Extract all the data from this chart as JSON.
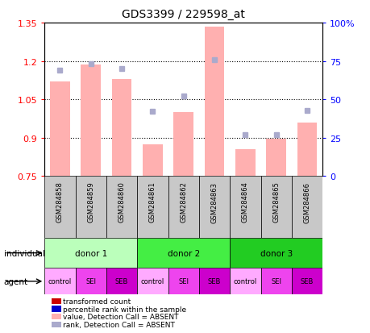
{
  "title": "GDS3399 / 229598_at",
  "samples": [
    "GSM284858",
    "GSM284859",
    "GSM284860",
    "GSM284861",
    "GSM284862",
    "GSM284863",
    "GSM284864",
    "GSM284865",
    "GSM284866"
  ],
  "bar_values": [
    1.12,
    1.185,
    1.13,
    0.875,
    1.0,
    1.335,
    0.855,
    0.895,
    0.96
  ],
  "rank_values": [
    0.69,
    0.73,
    0.7,
    0.42,
    0.52,
    0.76,
    0.27,
    0.27,
    0.43
  ],
  "ylim_left": [
    0.75,
    1.35
  ],
  "ylim_right": [
    0,
    100
  ],
  "yticks_left": [
    0.75,
    0.9,
    1.05,
    1.2,
    1.35
  ],
  "yticks_right": [
    0,
    25,
    50,
    75,
    100
  ],
  "ytick_labels_left": [
    "0.75",
    "0.9",
    "1.05",
    "1.2",
    "1.35"
  ],
  "ytick_labels_right": [
    "0",
    "25",
    "50",
    "75",
    "100%"
  ],
  "hlines": [
    0.9,
    1.05,
    1.2
  ],
  "bar_color": "#FFB0B0",
  "rank_color": "#AAAACC",
  "bar_bottom": 0.75,
  "individuals": [
    {
      "label": "donor 1",
      "start": 0,
      "end": 3,
      "color": "#BBFFBB"
    },
    {
      "label": "donor 2",
      "start": 3,
      "end": 6,
      "color": "#44EE44"
    },
    {
      "label": "donor 3",
      "start": 6,
      "end": 9,
      "color": "#22CC22"
    }
  ],
  "agents": [
    "control",
    "SEI",
    "SEB",
    "control",
    "SEI",
    "SEB",
    "control",
    "SEI",
    "SEB"
  ],
  "agent_colors": [
    "#FFAAFF",
    "#EE44EE",
    "#CC00CC",
    "#FFAAFF",
    "#EE44EE",
    "#CC00CC",
    "#FFAAFF",
    "#EE44EE",
    "#CC00CC"
  ],
  "legend_items": [
    {
      "label": "transformed count",
      "color": "#CC0000"
    },
    {
      "label": "percentile rank within the sample",
      "color": "#0000CC"
    },
    {
      "label": "value, Detection Call = ABSENT",
      "color": "#FFB0B0"
    },
    {
      "label": "rank, Detection Call = ABSENT",
      "color": "#AAAACC"
    }
  ]
}
